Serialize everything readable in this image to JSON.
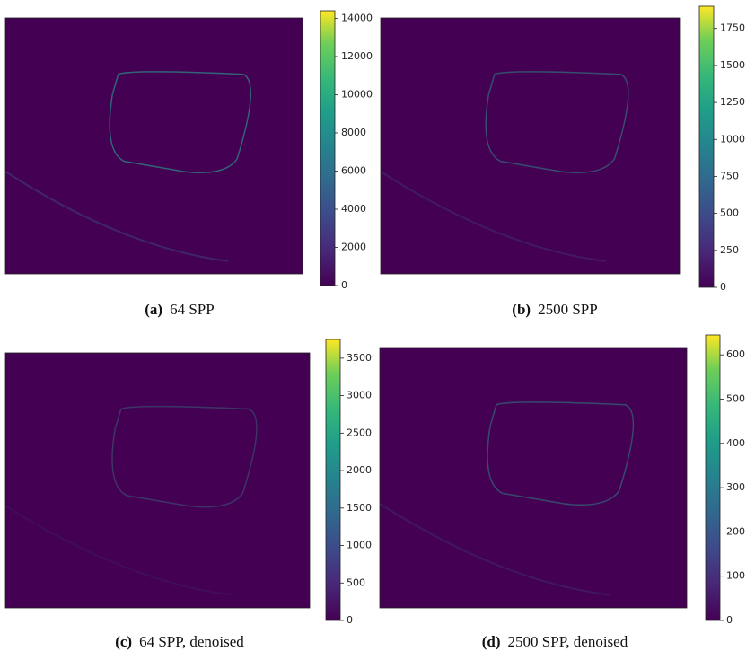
{
  "panels": [
    {
      "label": "(a)",
      "caption": "64 SPP",
      "colorbar": {
        "lim": [
          0,
          14400
        ],
        "ticks": [
          0,
          2000,
          4000,
          6000,
          8000,
          10000,
          12000,
          14000
        ]
      }
    },
    {
      "label": "(b)",
      "caption": "2500 SPP",
      "colorbar": {
        "lim": [
          0,
          1900
        ],
        "ticks": [
          0,
          250,
          500,
          750,
          1000,
          1250,
          1500,
          1750
        ]
      }
    },
    {
      "label": "(c)",
      "caption": "64 SPP, denoised",
      "colorbar": {
        "lim": [
          0,
          3750
        ],
        "ticks": [
          0,
          500,
          1000,
          1500,
          2000,
          2500,
          3000,
          3500
        ]
      }
    },
    {
      "label": "(d)",
      "caption": "2500 SPP, denoised",
      "colorbar": {
        "lim": [
          0,
          645
        ],
        "ticks": [
          0,
          100,
          200,
          300,
          400,
          500,
          600
        ]
      }
    }
  ]
}
